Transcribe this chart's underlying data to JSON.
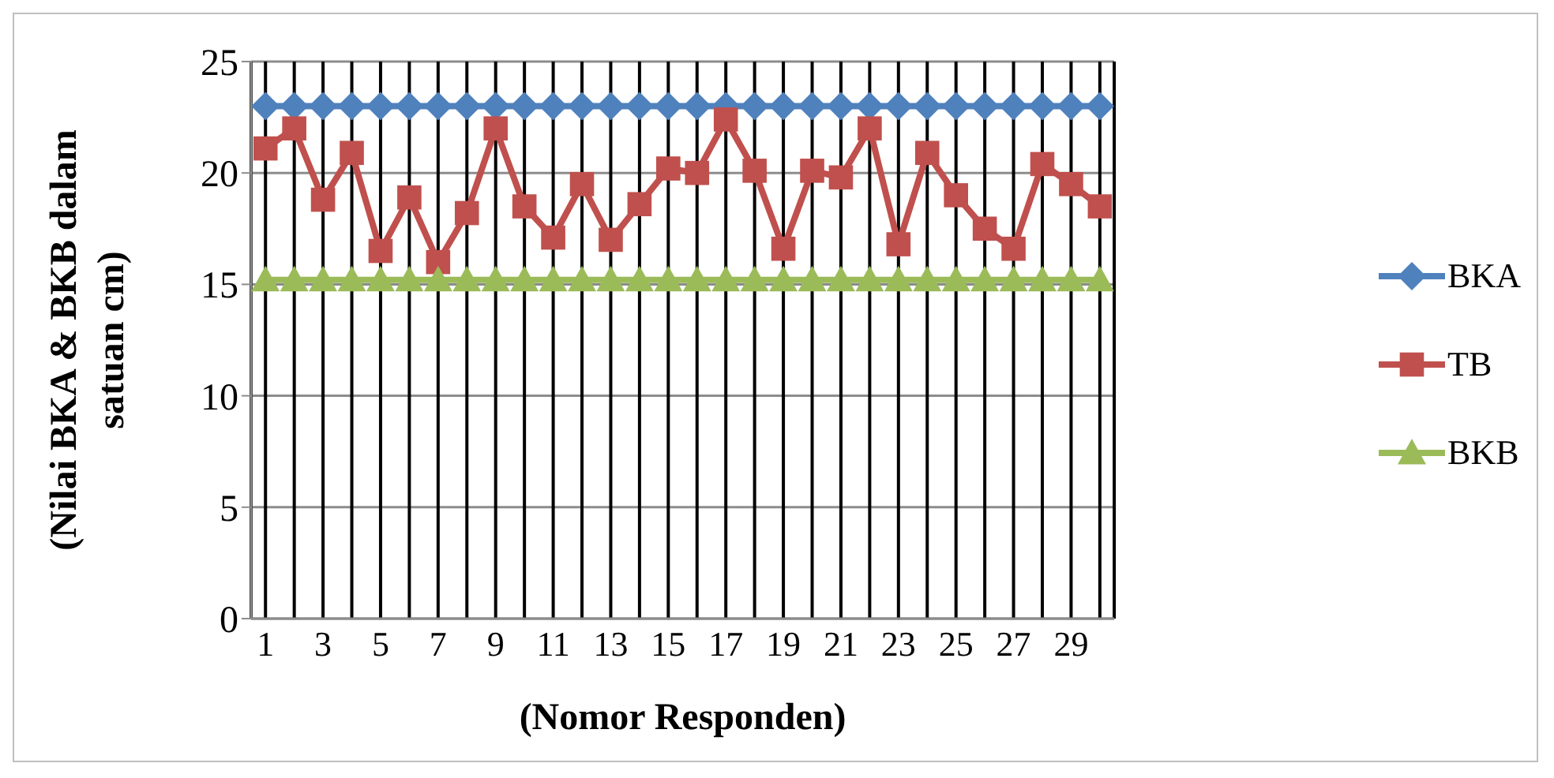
{
  "chart_data": {
    "type": "line",
    "ylabel": "(Nilai BKA & BKB dalam satuan cm)",
    "xlabel": "(Nomor Responden)",
    "x": [
      1,
      2,
      3,
      4,
      5,
      6,
      7,
      8,
      9,
      10,
      11,
      12,
      13,
      14,
      15,
      16,
      17,
      18,
      19,
      20,
      21,
      22,
      23,
      24,
      25,
      26,
      27,
      28,
      29,
      30
    ],
    "xlim": [
      0.5,
      30.5
    ],
    "xticks": [
      1,
      {
        "value": 2,
        "label": null
      },
      3,
      {
        "value": 4,
        "label": null
      },
      5,
      {
        "value": 6,
        "label": null
      },
      7,
      {
        "value": 8,
        "label": null
      },
      9,
      {
        "value": 10,
        "label": null
      },
      11,
      {
        "value": 12,
        "label": null
      },
      13,
      {
        "value": 14,
        "label": null
      },
      15,
      {
        "value": 16,
        "label": null
      },
      17,
      {
        "value": 18,
        "label": null
      },
      19,
      {
        "value": 20,
        "label": null
      },
      21,
      {
        "value": 22,
        "label": null
      },
      23,
      {
        "value": 24,
        "label": null
      },
      25,
      {
        "value": 26,
        "label": null
      },
      27,
      {
        "value": 28,
        "label": null
      },
      29,
      {
        "value": 30,
        "label": null
      }
    ],
    "series": [
      {
        "name": "BKA",
        "color": "#4f81bd",
        "marker": "diamond",
        "values": [
          23,
          23,
          23,
          23,
          23,
          23,
          23,
          23,
          23,
          23,
          23,
          23,
          23,
          23,
          23,
          23,
          23,
          23,
          23,
          23,
          23,
          23,
          23,
          23,
          23,
          23,
          23,
          23,
          23,
          23
        ]
      },
      {
        "name": "TB",
        "color": "#c0504d",
        "marker": "square",
        "values": [
          21.1,
          22.0,
          18.8,
          20.9,
          16.5,
          18.9,
          16.0,
          18.2,
          22.0,
          18.5,
          17.1,
          19.5,
          17.0,
          18.6,
          20.2,
          20.0,
          22.4,
          20.1,
          16.6,
          20.1,
          19.8,
          22.0,
          16.8,
          20.9,
          19.0,
          17.5,
          16.6,
          20.4,
          19.5,
          18.5
        ]
      },
      {
        "name": "BKB",
        "color": "#9bbb59",
        "marker": "triangle",
        "values": [
          15.2,
          15.2,
          15.2,
          15.2,
          15.2,
          15.2,
          15.2,
          15.2,
          15.2,
          15.2,
          15.2,
          15.2,
          15.2,
          15.2,
          15.2,
          15.2,
          15.2,
          15.2,
          15.2,
          15.2,
          15.2,
          15.2,
          15.2,
          15.2,
          15.2,
          15.2,
          15.2,
          15.2,
          15.2,
          15.2
        ]
      }
    ],
    "ylim": [
      0,
      25
    ],
    "yticks": [
      0,
      5,
      10,
      15,
      20,
      25
    ],
    "grid": true,
    "legend": "right",
    "line_style": "solid"
  }
}
